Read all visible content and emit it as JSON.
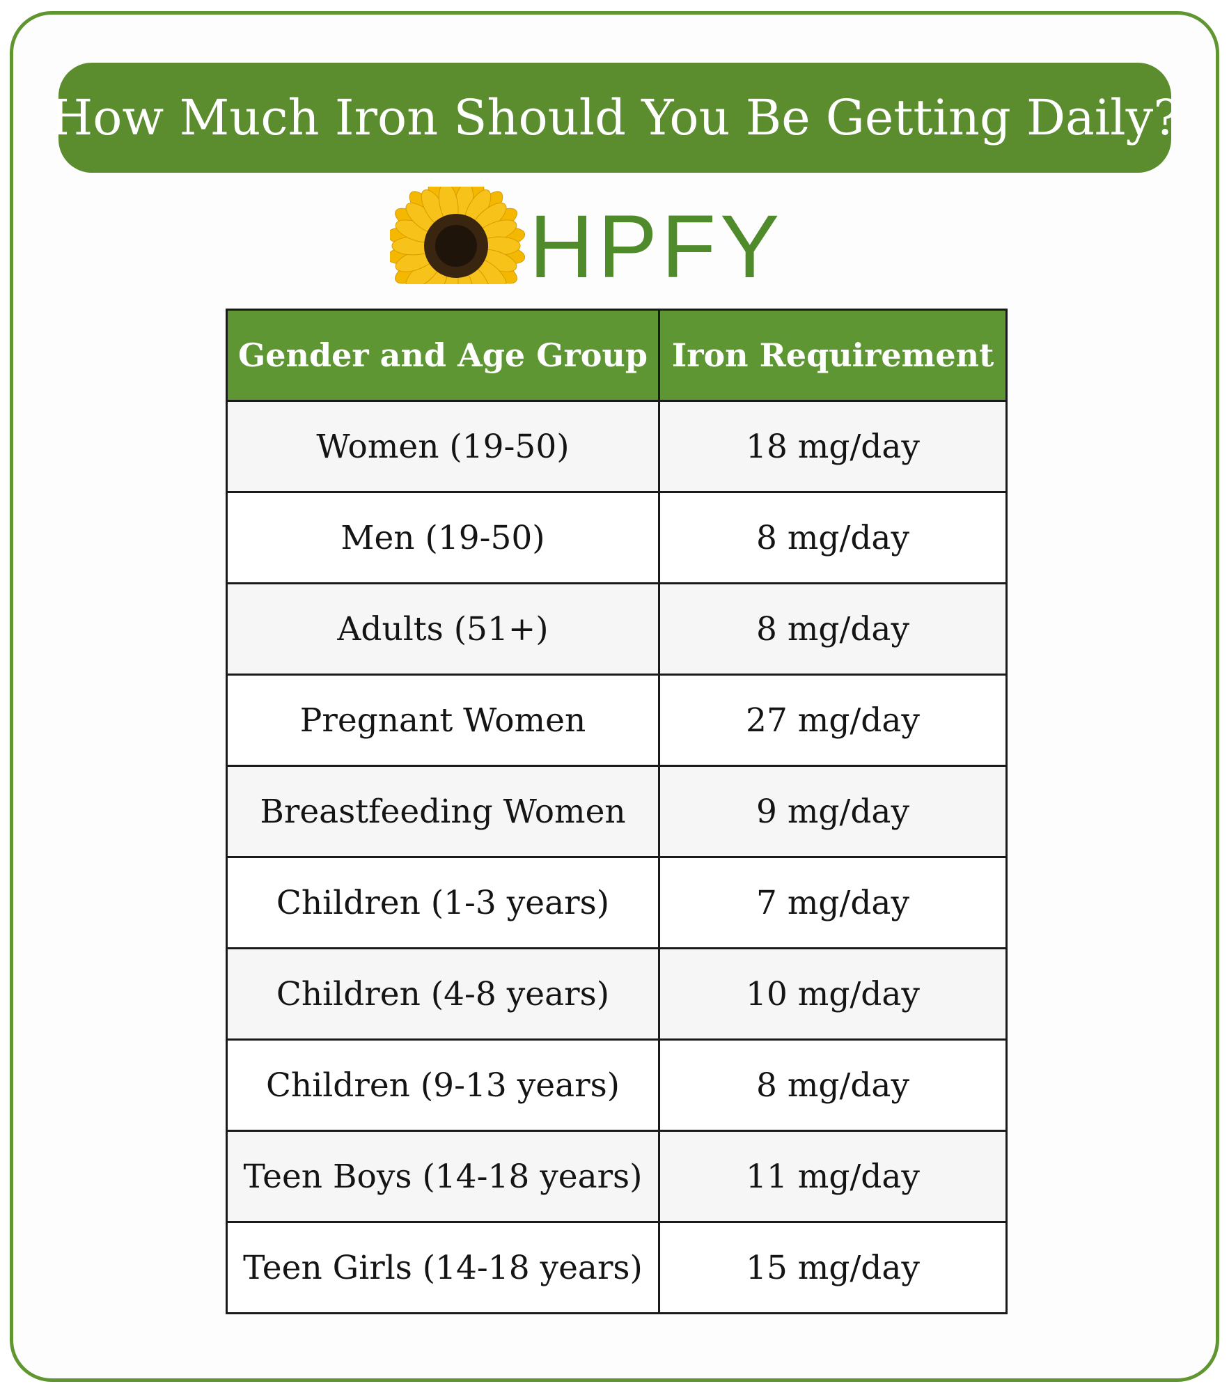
{
  "title": "How Much Iron Should You Be Getting Daily?",
  "logo": {
    "text": "HPFY",
    "icon": "sunflower-icon",
    "brand_color": "#4f8a2b",
    "petal_color": "#f5b800"
  },
  "colors": {
    "accent_green": "#5b8c2e",
    "frame_green": "#5f9630"
  },
  "table": {
    "headers": [
      "Gender and Age Group",
      "Iron Requirement"
    ],
    "rows": [
      {
        "group": "Women (19-50)",
        "requirement": "18 mg/day"
      },
      {
        "group": "Men (19-50)",
        "requirement": "8 mg/day"
      },
      {
        "group": "Adults (51+)",
        "requirement": "8 mg/day"
      },
      {
        "group": "Pregnant Women",
        "requirement": "27 mg/day"
      },
      {
        "group": "Breastfeeding Women",
        "requirement": "9 mg/day"
      },
      {
        "group": "Children (1-3 years)",
        "requirement": "7 mg/day"
      },
      {
        "group": "Children (4-8 years)",
        "requirement": "10 mg/day"
      },
      {
        "group": "Children (9-13 years)",
        "requirement": "8 mg/day"
      },
      {
        "group": "Teen Boys (14-18 years)",
        "requirement": "11 mg/day"
      },
      {
        "group": "Teen Girls (14-18 years)",
        "requirement": "15 mg/day"
      }
    ]
  }
}
